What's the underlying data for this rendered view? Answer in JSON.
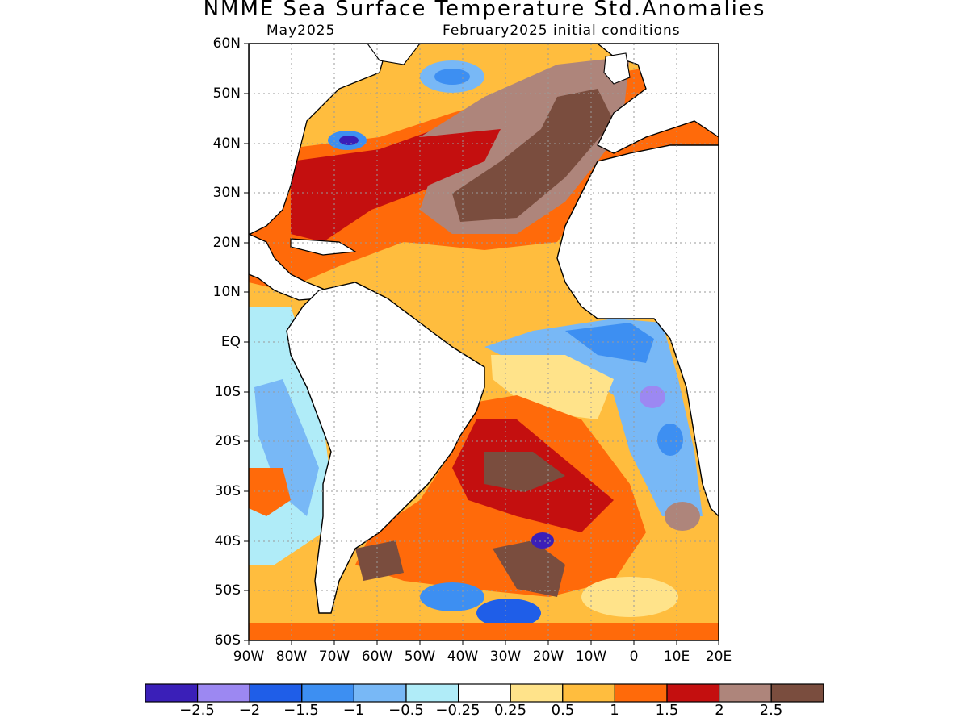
{
  "title": "NMME Sea Surface Temperature Std.Anomalies",
  "target_month": "May2025",
  "initial_conditions": "February2025 initial conditions",
  "lat_labels": [
    "60N",
    "50N",
    "40N",
    "30N",
    "20N",
    "10N",
    "EQ",
    "10S",
    "20S",
    "30S",
    "40S",
    "50S",
    "60S"
  ],
  "lon_labels": [
    "90W",
    "80W",
    "70W",
    "60W",
    "50W",
    "40W",
    "30W",
    "20W",
    "10W",
    "0",
    "10E",
    "20E"
  ],
  "colorbar": {
    "colors": [
      "#3a1fb8",
      "#9c88f2",
      "#1f5ee8",
      "#3d8ff2",
      "#78b8f6",
      "#b0ecf8",
      "#ffffff",
      "#ffe38a",
      "#ffbd3e",
      "#ff6a0a",
      "#c40f0f",
      "#ae857b",
      "#7a4d3e"
    ],
    "labels": [
      "−2.5",
      "−2",
      "−1.5",
      "−1",
      "−0.5",
      "−0.25",
      "0.25",
      "0.5",
      "1",
      "1.5",
      "2",
      "2.5"
    ]
  },
  "legend_colors": {
    "land": "#ffffff",
    "coastline": "#000000",
    "grid": "#9a9a9a"
  }
}
